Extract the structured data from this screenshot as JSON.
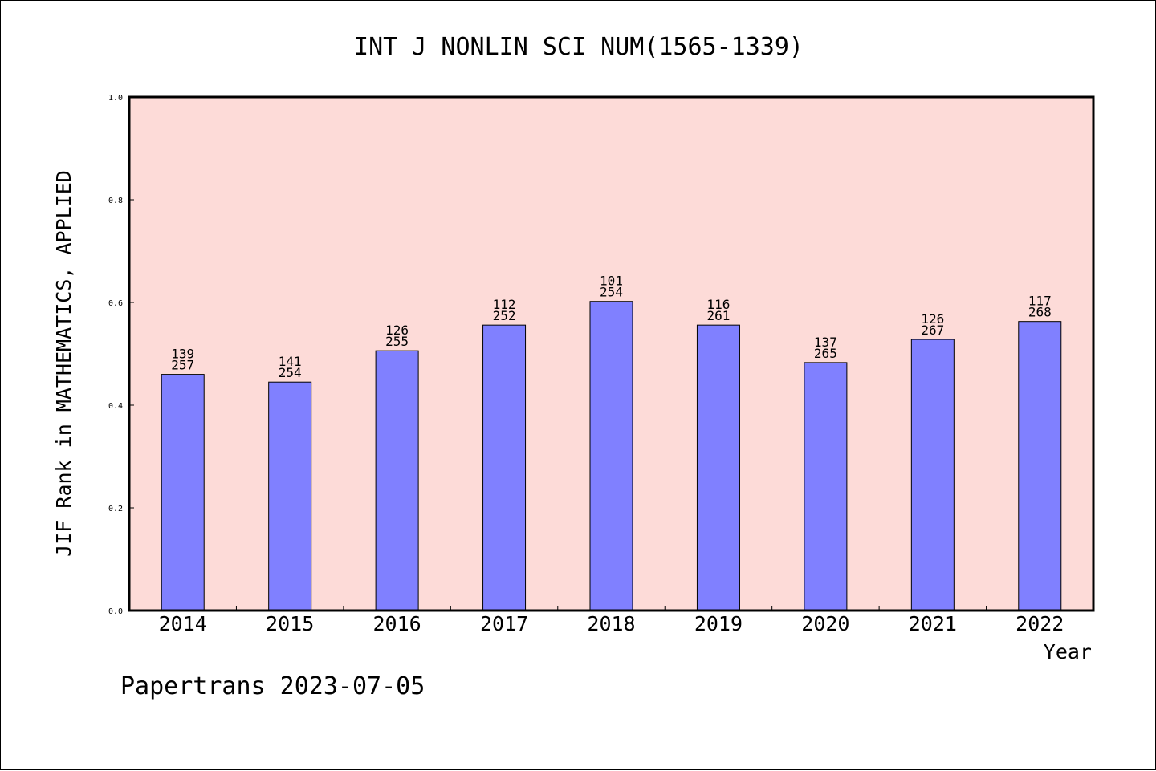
{
  "chart_data": {
    "type": "bar",
    "title": "INT J NONLIN SCI NUM(1565-1339)",
    "xlabel": "Year",
    "ylabel": "JIF Rank in MATHEMATICS, APPLIED",
    "ylim": [
      0,
      1.0
    ],
    "yticks": [
      "0.0",
      "0.2",
      "0.4",
      "0.6",
      "0.8",
      "1.0"
    ],
    "categories": [
      "2014",
      "2015",
      "2016",
      "2017",
      "2018",
      "2019",
      "2020",
      "2021",
      "2022"
    ],
    "values": [
      0.46,
      0.445,
      0.506,
      0.556,
      0.602,
      0.556,
      0.483,
      0.528,
      0.563
    ],
    "rank": [
      "139",
      "141",
      "126",
      "112",
      "101",
      "116",
      "137",
      "126",
      "117"
    ],
    "total": [
      "257",
      "254",
      "255",
      "252",
      "254",
      "261",
      "265",
      "267",
      "268"
    ],
    "grid": false,
    "colors": {
      "plot_bg": "#fddbd8",
      "bar": "#8080ff"
    }
  },
  "footer": {
    "text": "Papertrans 2023-07-05"
  }
}
